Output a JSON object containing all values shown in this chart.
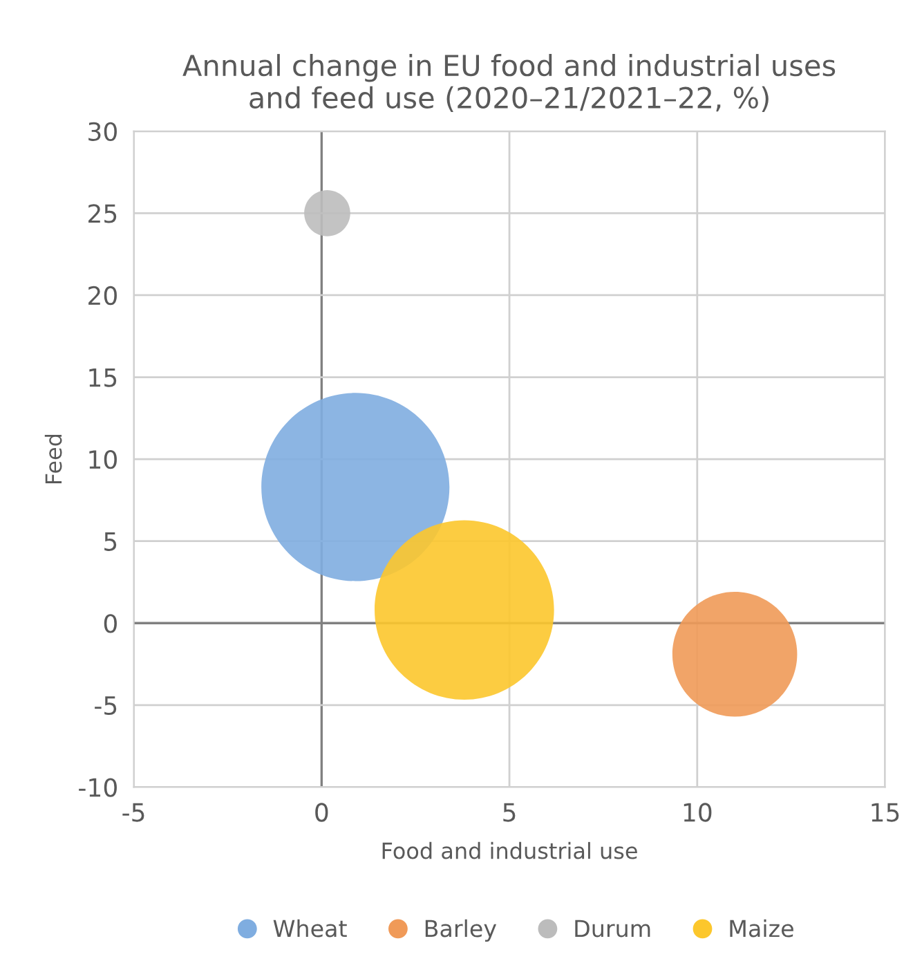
{
  "chart_data": {
    "type": "bubble",
    "title": "Annual change in EU food and industrial uses\nand feed use (2020–21/2021–22, %)",
    "xlabel": "Food and industrial use",
    "ylabel": "Feed",
    "series": [
      {
        "name": "Wheat",
        "color": "#7fade0",
        "x": [
          0.9
        ],
        "values": [
          8.3
        ],
        "sizes": [
          1
        ]
      },
      {
        "name": "Barley",
        "color": "#f09a58",
        "x": [
          11.0
        ],
        "values": [
          -1.9
        ],
        "sizes": [
          0.44
        ]
      },
      {
        "name": "Durum",
        "color": "#bcbcbc",
        "x": [
          0.15
        ],
        "values": [
          25.0
        ],
        "sizes": [
          0.06
        ]
      },
      {
        "name": "Maize",
        "color": "#fcc72c",
        "x": [
          3.8
        ],
        "values": [
          0.8
        ],
        "sizes": [
          0.91
        ]
      }
    ],
    "xlim": [
      -5,
      15
    ],
    "xticks": [
      -5,
      0,
      5,
      10,
      15
    ],
    "ylim": [
      -10,
      30
    ],
    "yticks": [
      -10,
      -5,
      0,
      5,
      10,
      15,
      20,
      25,
      30
    ],
    "grid": true,
    "legend": "bottom"
  }
}
